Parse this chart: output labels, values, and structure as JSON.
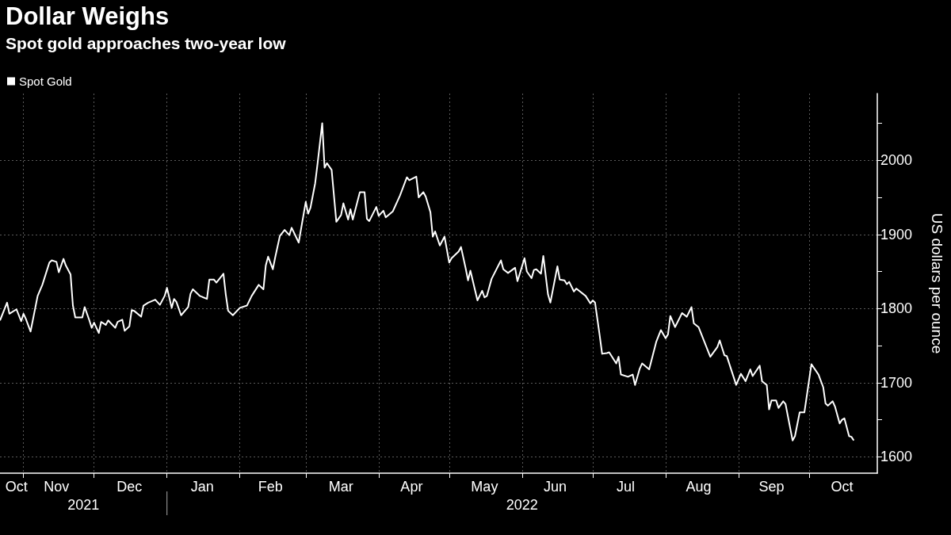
{
  "chart_data": {
    "type": "line",
    "title": "Dollar Weighs",
    "subtitle": "Spot gold approaches two-year low",
    "ylabel": "US dollars per ounce",
    "xlim": [
      "2021-10-22",
      "2022-10-30"
    ],
    "ylim": [
      1578,
      2090
    ],
    "xticks": [
      {
        "value": "2021-10-29",
        "label": "Oct"
      },
      {
        "value": "2021-11-01",
        "label": null
      },
      {
        "value": "2021-11-15",
        "label": "Nov"
      },
      {
        "value": "2021-12-01",
        "label": null
      },
      {
        "value": "2021-12-16",
        "label": "Dec"
      },
      {
        "value": "2022-01-01",
        "label": null
      },
      {
        "value": "2022-01-16",
        "label": "Jan"
      },
      {
        "value": "2022-02-01",
        "label": null
      },
      {
        "value": "2022-02-14",
        "label": "Feb"
      },
      {
        "value": "2022-03-01",
        "label": null
      },
      {
        "value": "2022-03-16",
        "label": "Mar"
      },
      {
        "value": "2022-04-01",
        "label": null
      },
      {
        "value": "2022-04-15",
        "label": "Apr"
      },
      {
        "value": "2022-05-01",
        "label": null
      },
      {
        "value": "2022-05-16",
        "label": "May"
      },
      {
        "value": "2022-06-01",
        "label": null
      },
      {
        "value": "2022-06-15",
        "label": "Jun"
      },
      {
        "value": "2022-07-01",
        "label": null
      },
      {
        "value": "2022-07-15",
        "label": "Jul"
      },
      {
        "value": "2022-08-01",
        "label": null
      },
      {
        "value": "2022-08-15",
        "label": "Aug"
      },
      {
        "value": "2022-09-01",
        "label": null
      },
      {
        "value": "2022-09-15",
        "label": "Sep"
      },
      {
        "value": "2022-10-01",
        "label": null
      },
      {
        "value": "2022-10-15",
        "label": "Oct"
      }
    ],
    "yticks": [
      1600,
      {
        "value": 1650,
        "label": null
      },
      1700,
      {
        "value": 1750,
        "label": null
      },
      1800,
      {
        "value": 1850,
        "label": null
      },
      1900,
      {
        "value": 1950,
        "label": null
      },
      2000,
      {
        "value": 2050,
        "label": null
      }
    ],
    "grid": true,
    "legend": "top left",
    "marker": "none",
    "annotations": [
      "2021",
      "2022"
    ],
    "series": [
      {
        "name": "Spot Gold",
        "color": "#ffffff",
        "x": [
          "2021-10-22",
          "2021-10-25",
          "2021-10-26",
          "2021-10-29",
          "2021-10-31",
          "2021-11-01",
          "2021-11-02",
          "2021-11-04",
          "2021-11-07",
          "2021-11-09",
          "2021-11-12",
          "2021-11-13",
          "2021-11-15",
          "2021-11-16",
          "2021-11-18",
          "2021-11-19",
          "2021-11-21",
          "2021-11-22",
          "2021-11-23",
          "2021-11-26",
          "2021-11-27",
          "2021-11-29",
          "2021-11-30",
          "2021-12-01",
          "2021-12-03",
          "2021-12-04",
          "2021-12-06",
          "2021-12-07",
          "2021-12-10",
          "2021-12-11",
          "2021-12-13",
          "2021-12-14",
          "2021-12-16",
          "2021-12-17",
          "2021-12-18",
          "2021-12-21",
          "2021-12-22",
          "2021-12-24",
          "2021-12-27",
          "2021-12-29",
          "2021-12-31",
          "2022-01-01",
          "2022-01-03",
          "2022-01-04",
          "2022-01-05",
          "2022-01-07",
          "2022-01-10",
          "2022-01-11",
          "2022-01-12",
          "2022-01-15",
          "2022-01-18",
          "2022-01-19",
          "2022-01-21",
          "2022-01-22",
          "2022-01-25",
          "2022-01-26",
          "2022-01-27",
          "2022-01-29",
          "2022-02-01",
          "2022-02-04",
          "2022-02-06",
          "2022-02-09",
          "2022-02-11",
          "2022-02-12",
          "2022-02-13",
          "2022-02-15",
          "2022-02-16",
          "2022-02-18",
          "2022-02-20",
          "2022-02-22",
          "2022-02-23",
          "2022-02-26",
          "2022-03-01",
          "2022-03-02",
          "2022-03-03",
          "2022-03-05",
          "2022-03-06",
          "2022-03-08",
          "2022-03-09",
          "2022-03-10",
          "2022-03-12",
          "2022-03-14",
          "2022-03-16",
          "2022-03-17",
          "2022-03-19",
          "2022-03-20",
          "2022-03-21",
          "2022-03-24",
          "2022-03-26",
          "2022-03-27",
          "2022-03-28",
          "2022-03-31",
          "2022-04-01",
          "2022-04-03",
          "2022-04-04",
          "2022-04-07",
          "2022-04-10",
          "2022-04-13",
          "2022-04-14",
          "2022-04-17",
          "2022-04-18",
          "2022-04-20",
          "2022-04-21",
          "2022-04-23",
          "2022-04-24",
          "2022-04-25",
          "2022-04-27",
          "2022-04-29",
          "2022-05-01",
          "2022-05-02",
          "2022-05-05",
          "2022-05-06",
          "2022-05-08",
          "2022-05-09",
          "2022-05-10",
          "2022-05-13",
          "2022-05-15",
          "2022-05-16",
          "2022-05-17",
          "2022-05-19",
          "2022-05-23",
          "2022-05-24",
          "2022-05-26",
          "2022-05-29",
          "2022-05-30",
          "2022-05-31",
          "2022-06-02",
          "2022-06-03",
          "2022-06-05",
          "2022-06-06",
          "2022-06-07",
          "2022-06-09",
          "2022-06-10",
          "2022-06-12",
          "2022-06-13",
          "2022-06-16",
          "2022-06-17",
          "2022-06-19",
          "2022-06-20",
          "2022-06-21",
          "2022-06-23",
          "2022-06-24",
          "2022-06-28",
          "2022-06-30",
          "2022-07-01",
          "2022-07-02",
          "2022-07-04",
          "2022-07-05",
          "2022-07-07",
          "2022-07-08",
          "2022-07-11",
          "2022-07-12",
          "2022-07-13",
          "2022-07-16",
          "2022-07-18",
          "2022-07-19",
          "2022-07-21",
          "2022-07-22",
          "2022-07-25",
          "2022-07-28",
          "2022-07-30",
          "2022-08-01",
          "2022-08-02",
          "2022-08-03",
          "2022-08-05",
          "2022-08-08",
          "2022-08-10",
          "2022-08-12",
          "2022-08-13",
          "2022-08-15",
          "2022-08-17",
          "2022-08-20",
          "2022-08-23",
          "2022-08-24",
          "2022-08-26",
          "2022-08-27",
          "2022-08-31",
          "2022-09-02",
          "2022-09-04",
          "2022-09-06",
          "2022-09-07",
          "2022-09-10",
          "2022-09-11",
          "2022-09-13",
          "2022-09-14",
          "2022-09-15",
          "2022-09-17",
          "2022-09-18",
          "2022-09-20",
          "2022-09-21",
          "2022-09-24",
          "2022-09-25",
          "2022-09-27",
          "2022-09-29",
          "2022-10-02",
          "2022-10-05",
          "2022-10-07",
          "2022-10-08",
          "2022-10-09",
          "2022-10-11",
          "2022-10-12",
          "2022-10-14",
          "2022-10-15",
          "2022-10-16",
          "2022-10-18",
          "2022-10-19",
          "2022-10-20"
        ],
        "values": [
          1784,
          1808,
          1793,
          1799,
          1783,
          1793,
          1786,
          1769,
          1817,
          1832,
          1862,
          1865,
          1863,
          1849,
          1867,
          1858,
          1846,
          1804,
          1788,
          1788,
          1802,
          1784,
          1774,
          1781,
          1767,
          1782,
          1778,
          1784,
          1774,
          1782,
          1785,
          1770,
          1776,
          1798,
          1797,
          1789,
          1804,
          1808,
          1812,
          1805,
          1817,
          1828,
          1801,
          1813,
          1809,
          1791,
          1802,
          1820,
          1826,
          1817,
          1813,
          1839,
          1839,
          1835,
          1847,
          1819,
          1797,
          1791,
          1801,
          1804,
          1817,
          1832,
          1826,
          1858,
          1870,
          1853,
          1869,
          1898,
          1906,
          1899,
          1909,
          1889,
          1944,
          1928,
          1936,
          1969,
          1995,
          2050,
          1990,
          1996,
          1987,
          1917,
          1926,
          1942,
          1920,
          1934,
          1920,
          1957,
          1957,
          1921,
          1918,
          1937,
          1925,
          1932,
          1923,
          1931,
          1952,
          1977,
          1973,
          1978,
          1950,
          1957,
          1951,
          1930,
          1897,
          1904,
          1885,
          1897,
          1862,
          1868,
          1877,
          1883,
          1854,
          1838,
          1851,
          1811,
          1824,
          1815,
          1817,
          1840,
          1865,
          1853,
          1848,
          1855,
          1837,
          1847,
          1868,
          1850,
          1841,
          1852,
          1853,
          1847,
          1871,
          1819,
          1808,
          1857,
          1839,
          1838,
          1833,
          1836,
          1823,
          1827,
          1817,
          1807,
          1811,
          1808,
          1763,
          1739,
          1740,
          1741,
          1726,
          1735,
          1711,
          1708,
          1711,
          1697,
          1719,
          1726,
          1718,
          1755,
          1771,
          1760,
          1765,
          1790,
          1775,
          1794,
          1789,
          1802,
          1780,
          1775,
          1759,
          1735,
          1748,
          1757,
          1737,
          1736,
          1697,
          1712,
          1702,
          1718,
          1709,
          1723,
          1702,
          1697,
          1664,
          1676,
          1676,
          1666,
          1675,
          1671,
          1622,
          1628,
          1660,
          1660,
          1725,
          1711,
          1694,
          1672,
          1669,
          1675,
          1668,
          1645,
          1650,
          1652,
          1628,
          1627,
          1622
        ]
      }
    ]
  }
}
